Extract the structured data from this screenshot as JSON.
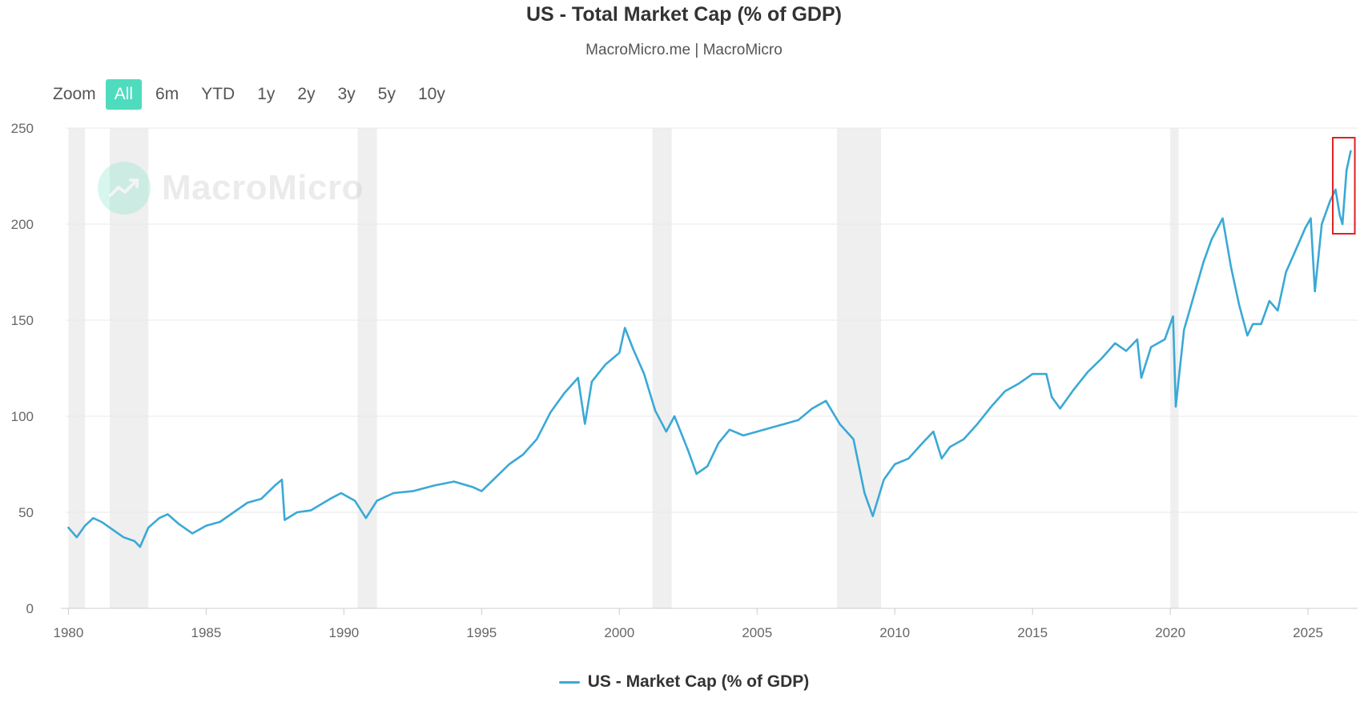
{
  "header": {
    "title": "US - Total Market Cap (% of GDP)",
    "subtitle": "MacroMicro.me | MacroMicro"
  },
  "zoom": {
    "label": "Zoom",
    "options": [
      "All",
      "6m",
      "YTD",
      "1y",
      "2y",
      "3y",
      "5y",
      "10y"
    ],
    "active": "All",
    "active_color": "#4fdcbe"
  },
  "watermark": {
    "text": "MacroMicro",
    "icon": "chart-growth-icon",
    "circle_color": "#8ee6cd"
  },
  "colors": {
    "series": "#3aa9d6",
    "recession_band": "#efefef",
    "grid": "#e8e8e8",
    "highlight_box": "#e02020"
  },
  "chart_data": {
    "type": "line",
    "title": "US - Total Market Cap (% of GDP)",
    "xlabel": "",
    "ylabel": "",
    "xlim": [
      1979.9,
      2026.8
    ],
    "ylim": [
      0,
      250
    ],
    "x_ticks": [
      1980,
      1985,
      1990,
      1995,
      2000,
      2005,
      2010,
      2015,
      2020,
      2025
    ],
    "y_ticks": [
      0,
      50,
      100,
      150,
      200,
      250
    ],
    "grid": true,
    "legend_position": "bottom-center",
    "recession_bands": [
      [
        1980.0,
        1980.6
      ],
      [
        1981.5,
        1982.9
      ],
      [
        1990.5,
        1991.2
      ],
      [
        2001.2,
        2001.9
      ],
      [
        2007.9,
        2009.5
      ],
      [
        2020.0,
        2020.3
      ]
    ],
    "highlight": {
      "x": [
        2025.9,
        2026.7
      ],
      "y": [
        195,
        245
      ]
    },
    "series": [
      {
        "name": "US - Market Cap (% of GDP)",
        "points": [
          [
            1980.0,
            42
          ],
          [
            1980.3,
            37
          ],
          [
            1980.6,
            43
          ],
          [
            1980.9,
            47
          ],
          [
            1981.2,
            45
          ],
          [
            1981.6,
            41
          ],
          [
            1982.0,
            37
          ],
          [
            1982.4,
            35
          ],
          [
            1982.6,
            32
          ],
          [
            1982.9,
            42
          ],
          [
            1983.3,
            47
          ],
          [
            1983.6,
            49
          ],
          [
            1984.0,
            44
          ],
          [
            1984.5,
            39
          ],
          [
            1985.0,
            43
          ],
          [
            1985.5,
            45
          ],
          [
            1986.0,
            50
          ],
          [
            1986.5,
            55
          ],
          [
            1987.0,
            57
          ],
          [
            1987.5,
            64
          ],
          [
            1987.75,
            67
          ],
          [
            1987.85,
            46
          ],
          [
            1988.3,
            50
          ],
          [
            1988.8,
            51
          ],
          [
            1989.5,
            57
          ],
          [
            1989.9,
            60
          ],
          [
            1990.4,
            56
          ],
          [
            1990.8,
            47
          ],
          [
            1991.2,
            56
          ],
          [
            1991.8,
            60
          ],
          [
            1992.5,
            61
          ],
          [
            1993.3,
            64
          ],
          [
            1994.0,
            66
          ],
          [
            1994.7,
            63
          ],
          [
            1995.0,
            61
          ],
          [
            1995.5,
            68
          ],
          [
            1996.0,
            75
          ],
          [
            1996.5,
            80
          ],
          [
            1997.0,
            88
          ],
          [
            1997.5,
            102
          ],
          [
            1998.0,
            112
          ],
          [
            1998.5,
            120
          ],
          [
            1998.75,
            96
          ],
          [
            1999.0,
            118
          ],
          [
            1999.5,
            127
          ],
          [
            2000.0,
            133
          ],
          [
            2000.2,
            146
          ],
          [
            2000.5,
            135
          ],
          [
            2000.9,
            122
          ],
          [
            2001.3,
            103
          ],
          [
            2001.7,
            92
          ],
          [
            2002.0,
            100
          ],
          [
            2002.5,
            82
          ],
          [
            2002.8,
            70
          ],
          [
            2003.2,
            74
          ],
          [
            2003.6,
            86
          ],
          [
            2004.0,
            93
          ],
          [
            2004.5,
            90
          ],
          [
            2005.0,
            92
          ],
          [
            2005.5,
            94
          ],
          [
            2006.0,
            96
          ],
          [
            2006.5,
            98
          ],
          [
            2007.0,
            104
          ],
          [
            2007.5,
            108
          ],
          [
            2008.0,
            96
          ],
          [
            2008.5,
            88
          ],
          [
            2008.9,
            60
          ],
          [
            2009.2,
            48
          ],
          [
            2009.6,
            67
          ],
          [
            2010.0,
            75
          ],
          [
            2010.5,
            78
          ],
          [
            2011.0,
            86
          ],
          [
            2011.4,
            92
          ],
          [
            2011.7,
            78
          ],
          [
            2012.0,
            84
          ],
          [
            2012.5,
            88
          ],
          [
            2013.0,
            96
          ],
          [
            2013.5,
            105
          ],
          [
            2014.0,
            113
          ],
          [
            2014.5,
            117
          ],
          [
            2015.0,
            122
          ],
          [
            2015.5,
            122
          ],
          [
            2015.7,
            110
          ],
          [
            2016.0,
            104
          ],
          [
            2016.5,
            114
          ],
          [
            2017.0,
            123
          ],
          [
            2017.5,
            130
          ],
          [
            2018.0,
            138
          ],
          [
            2018.4,
            134
          ],
          [
            2018.8,
            140
          ],
          [
            2018.95,
            120
          ],
          [
            2019.3,
            136
          ],
          [
            2019.8,
            140
          ],
          [
            2020.1,
            152
          ],
          [
            2020.2,
            105
          ],
          [
            2020.5,
            145
          ],
          [
            2020.9,
            165
          ],
          [
            2021.2,
            180
          ],
          [
            2021.5,
            192
          ],
          [
            2021.9,
            203
          ],
          [
            2022.2,
            178
          ],
          [
            2022.5,
            158
          ],
          [
            2022.8,
            142
          ],
          [
            2023.0,
            148
          ],
          [
            2023.3,
            148
          ],
          [
            2023.6,
            160
          ],
          [
            2023.9,
            155
          ],
          [
            2024.2,
            175
          ],
          [
            2024.6,
            188
          ],
          [
            2024.9,
            198
          ],
          [
            2025.1,
            203
          ],
          [
            2025.25,
            165
          ],
          [
            2025.5,
            200
          ],
          [
            2025.8,
            212
          ],
          [
            2026.0,
            218
          ],
          [
            2026.15,
            205
          ],
          [
            2026.25,
            200
          ],
          [
            2026.4,
            228
          ],
          [
            2026.55,
            238
          ]
        ]
      }
    ]
  }
}
